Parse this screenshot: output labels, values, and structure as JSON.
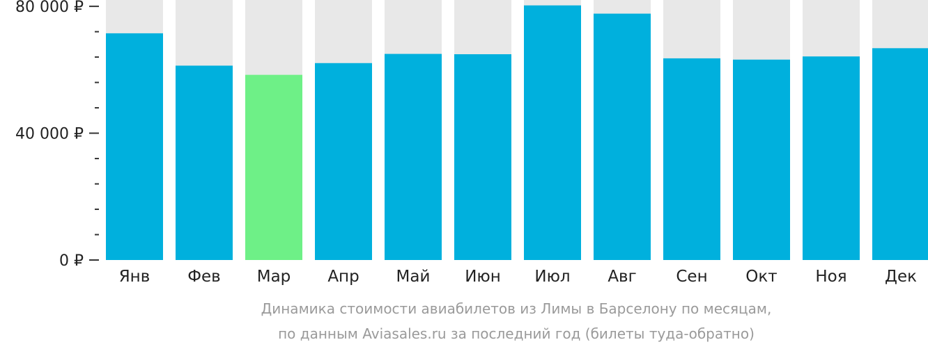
{
  "chart_data": {
    "type": "bar",
    "categories": [
      "Янв",
      "Фев",
      "Мар",
      "Апр",
      "Май",
      "Июн",
      "Июл",
      "Авг",
      "Сен",
      "Окт",
      "Ноя",
      "Дек"
    ],
    "values": [
      71500,
      61300,
      58400,
      62100,
      65000,
      64900,
      80300,
      77700,
      63600,
      63200,
      64200,
      66800
    ],
    "highlight_index": 2,
    "ylim": [
      0,
      82000
    ],
    "yticks": [
      {
        "value": 0,
        "label": "0 ₽"
      },
      {
        "value": 40000,
        "label": "40 000 ₽"
      },
      {
        "value": 80000,
        "label": "80 000 ₽"
      }
    ],
    "minor_tick_step": 8000,
    "caption_line1": "Динамика стоимости авиабилетов из Лимы в Барселону по месяцам,",
    "caption_line2": "по данным Aviasales.ru за последний год (билеты туда-обратно)",
    "colors": {
      "bar": "#00b0dd",
      "highlight": "#6ef087",
      "background_bar": "#e8e8e8",
      "axis": "#333333"
    }
  }
}
